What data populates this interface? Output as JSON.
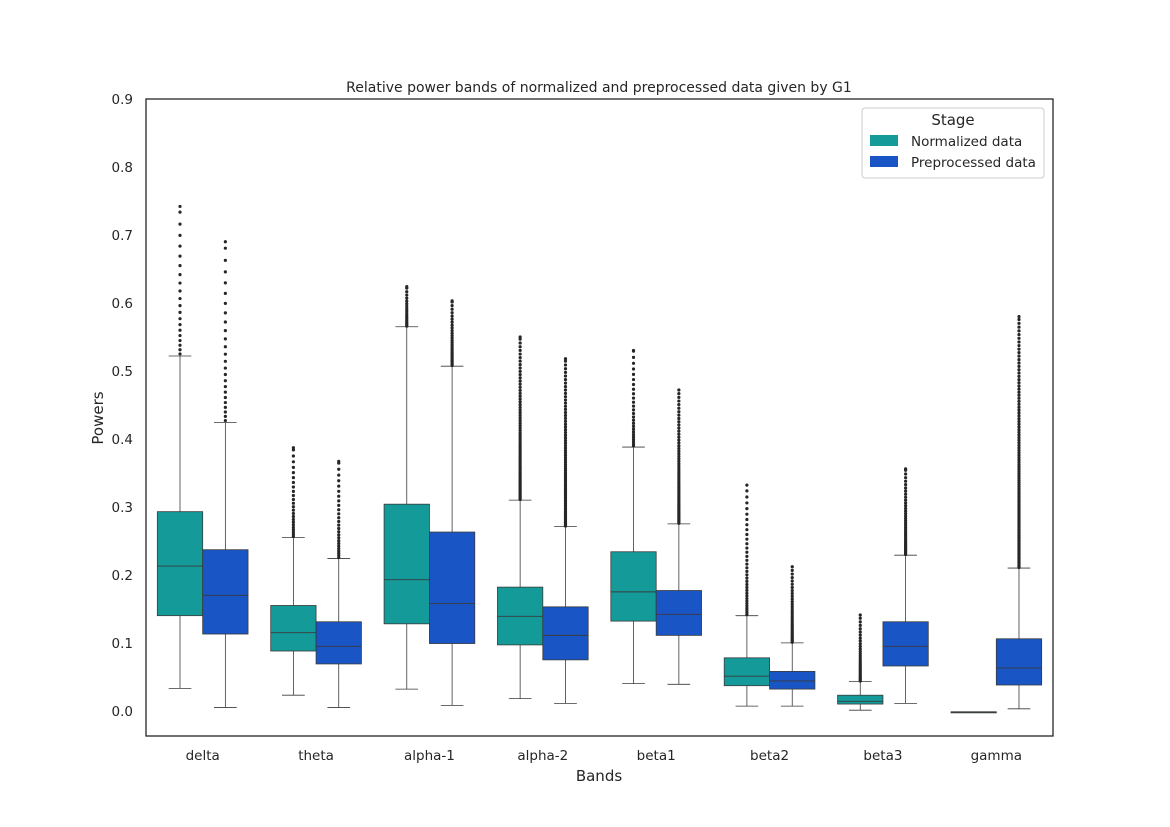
{
  "chart_data": {
    "type": "box",
    "title": "Relative power bands of normalized and preprocessed data given by G1",
    "xlabel": "Bands",
    "ylabel": "Powers",
    "ylim": [
      -0.037,
      0.9
    ],
    "yticks": [
      "0.0",
      "0.1",
      "0.2",
      "0.3",
      "0.4",
      "0.5",
      "0.6",
      "0.7",
      "0.8",
      "0.9"
    ],
    "categories": [
      "delta",
      "theta",
      "alpha-1",
      "alpha-2",
      "beta1",
      "beta2",
      "beta3",
      "gamma"
    ],
    "legend": {
      "title": "Stage",
      "position": "top-right"
    },
    "grid": false,
    "series": [
      {
        "name": "Normalized data",
        "color": "#159a9a",
        "boxes": [
          {
            "whislo": 0.033,
            "q1": 0.14,
            "med": 0.213,
            "q3": 0.293,
            "whishi": 0.522,
            "fliers_max": 0.742,
            "flier_density": "sparse"
          },
          {
            "whislo": 0.023,
            "q1": 0.088,
            "med": 0.115,
            "q3": 0.155,
            "whishi": 0.255,
            "fliers_max": 0.387,
            "flier_density": "medium"
          },
          {
            "whislo": 0.032,
            "q1": 0.128,
            "med": 0.193,
            "q3": 0.304,
            "whishi": 0.565,
            "fliers_max": 0.624,
            "flier_density": "dense"
          },
          {
            "whislo": 0.018,
            "q1": 0.097,
            "med": 0.139,
            "q3": 0.182,
            "whishi": 0.31,
            "fliers_max": 0.55,
            "flier_density": "dense"
          },
          {
            "whislo": 0.04,
            "q1": 0.132,
            "med": 0.175,
            "q3": 0.234,
            "whishi": 0.388,
            "fliers_max": 0.53,
            "flier_density": "medium"
          },
          {
            "whislo": 0.007,
            "q1": 0.037,
            "med": 0.051,
            "q3": 0.078,
            "whishi": 0.14,
            "fliers_max": 0.332,
            "flier_density": "medium"
          },
          {
            "whislo": 0.001,
            "q1": 0.01,
            "med": 0.014,
            "q3": 0.023,
            "whishi": 0.043,
            "fliers_max": 0.141,
            "flier_density": "dense"
          },
          {
            "whislo": -0.0015,
            "q1": -0.0015,
            "med": -0.0015,
            "q3": -0.0015,
            "whishi": -0.0015,
            "fliers_max": -0.0015,
            "flier_density": "none"
          }
        ]
      },
      {
        "name": "Preprocessed data",
        "color": "#1a55c6",
        "boxes": [
          {
            "whislo": 0.005,
            "q1": 0.113,
            "med": 0.17,
            "q3": 0.237,
            "whishi": 0.424,
            "fliers_max": 0.69,
            "flier_density": "sparse"
          },
          {
            "whislo": 0.005,
            "q1": 0.069,
            "med": 0.095,
            "q3": 0.131,
            "whishi": 0.224,
            "fliers_max": 0.367,
            "flier_density": "medium"
          },
          {
            "whislo": 0.008,
            "q1": 0.099,
            "med": 0.158,
            "q3": 0.263,
            "whishi": 0.507,
            "fliers_max": 0.603,
            "flier_density": "dense"
          },
          {
            "whislo": 0.011,
            "q1": 0.075,
            "med": 0.111,
            "q3": 0.153,
            "whishi": 0.271,
            "fliers_max": 0.518,
            "flier_density": "dense"
          },
          {
            "whislo": 0.039,
            "q1": 0.111,
            "med": 0.142,
            "q3": 0.177,
            "whishi": 0.275,
            "fliers_max": 0.472,
            "flier_density": "dense"
          },
          {
            "whislo": 0.007,
            "q1": 0.032,
            "med": 0.044,
            "q3": 0.058,
            "whishi": 0.1,
            "fliers_max": 0.212,
            "flier_density": "dense"
          },
          {
            "whislo": 0.011,
            "q1": 0.066,
            "med": 0.095,
            "q3": 0.131,
            "whishi": 0.229,
            "fliers_max": 0.356,
            "flier_density": "dense"
          },
          {
            "whislo": 0.003,
            "q1": 0.038,
            "med": 0.063,
            "q3": 0.106,
            "whishi": 0.21,
            "fliers_max": 0.58,
            "flier_density": "dense"
          }
        ]
      }
    ]
  }
}
